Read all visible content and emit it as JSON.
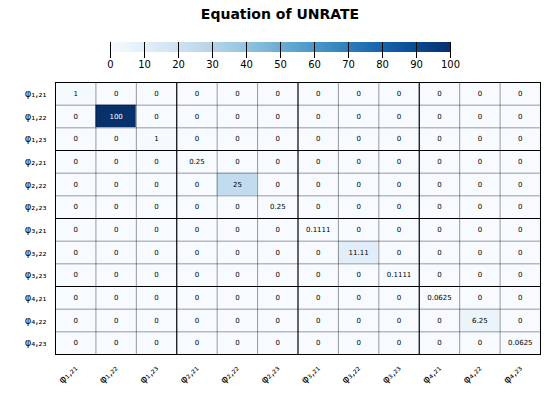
{
  "chart_data": {
    "type": "heatmap",
    "title": "Equation of UNRATE",
    "categories": [
      "φ₁,₂₁",
      "φ₁,₂₂",
      "φ₁,₂₃",
      "φ₂,₂₁",
      "φ₂,₂₂",
      "φ₂,₂₃",
      "φ₃,₂₁",
      "φ₃,₂₂",
      "φ₃,₂₃",
      "φ₄,₂₁",
      "φ₄,₂₂",
      "φ₄,₂₃"
    ],
    "values": [
      [
        1,
        0,
        0,
        0,
        0,
        0,
        0,
        0,
        0,
        0,
        0,
        0
      ],
      [
        0,
        100,
        0,
        0,
        0,
        0,
        0,
        0,
        0,
        0,
        0,
        0
      ],
      [
        0,
        0,
        1,
        0,
        0,
        0,
        0,
        0,
        0,
        0,
        0,
        0
      ],
      [
        0,
        0,
        0,
        0.25,
        0,
        0,
        0,
        0,
        0,
        0,
        0,
        0
      ],
      [
        0,
        0,
        0,
        0,
        25,
        0,
        0,
        0,
        0,
        0,
        0,
        0
      ],
      [
        0,
        0,
        0,
        0,
        0,
        0.25,
        0,
        0,
        0,
        0,
        0,
        0
      ],
      [
        0,
        0,
        0,
        0,
        0,
        0,
        0.1111,
        0,
        0,
        0,
        0,
        0
      ],
      [
        0,
        0,
        0,
        0,
        0,
        0,
        0,
        11.11,
        0,
        0,
        0,
        0
      ],
      [
        0,
        0,
        0,
        0,
        0,
        0,
        0,
        0,
        0.1111,
        0,
        0,
        0
      ],
      [
        0,
        0,
        0,
        0,
        0,
        0,
        0,
        0,
        0,
        0.0625,
        0,
        0
      ],
      [
        0,
        0,
        0,
        0,
        0,
        0,
        0,
        0,
        0,
        0,
        6.25,
        0
      ],
      [
        0,
        0,
        0,
        0,
        0,
        0,
        0,
        0,
        0,
        0,
        0,
        0.0625
      ]
    ],
    "data_labels": true,
    "color": "Blues",
    "color_range": [
      0,
      100
    ],
    "color_ticks": [
      0,
      10,
      20,
      30,
      40,
      50,
      60,
      70,
      80,
      90,
      100
    ]
  }
}
